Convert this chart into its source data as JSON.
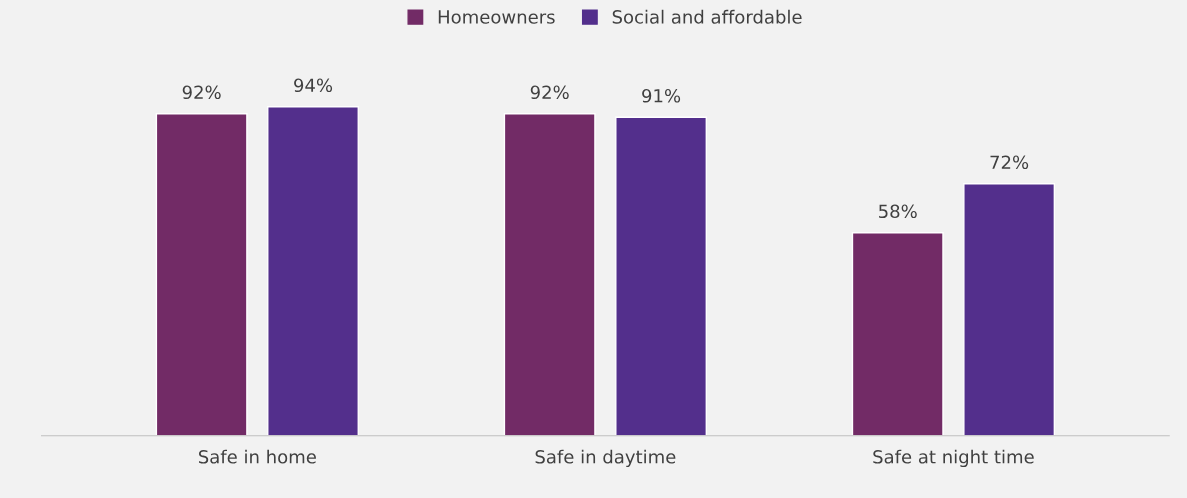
{
  "chart_data": {
    "type": "bar",
    "categories": [
      "Safe in home",
      "Safe in daytime",
      "Safe at night time"
    ],
    "series": [
      {
        "name": "Homeowners",
        "color": "#722b66",
        "values": [
          92,
          92,
          58
        ],
        "value_labels": [
          "92%",
          "92%",
          "58%"
        ]
      },
      {
        "name": "Social and affordable",
        "color": "#532f8c",
        "values": [
          94,
          91,
          72
        ],
        "value_labels": [
          "94%",
          "91%",
          "72%"
        ]
      }
    ],
    "legend": "top",
    "grid": false
  }
}
